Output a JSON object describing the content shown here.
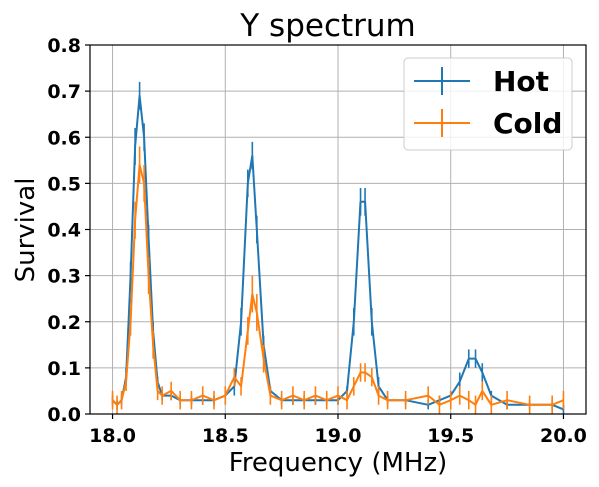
{
  "chart_data": {
    "type": "line",
    "title": "Y spectrum",
    "xlabel": "Frequency (MHz)",
    "ylabel": "Survival",
    "xlim": [
      17.9,
      20.1
    ],
    "ylim": [
      0.0,
      0.8
    ],
    "xticks": [
      18.0,
      18.5,
      19.0,
      19.5,
      20.0
    ],
    "xtick_labels": [
      "18.0",
      "18.5",
      "19.0",
      "19.5",
      "20.0"
    ],
    "yticks": [
      0.0,
      0.1,
      0.2,
      0.3,
      0.4,
      0.5,
      0.6,
      0.7,
      0.8
    ],
    "ytick_labels": [
      "0.0",
      "0.1",
      "0.2",
      "0.3",
      "0.4",
      "0.5",
      "0.6",
      "0.7",
      "0.8"
    ],
    "grid": true,
    "legend_position": "top-right",
    "series": [
      {
        "name": "Hot",
        "color": "#1f77b4",
        "points": [
          [
            18.0,
            0.03,
            0.01
          ],
          [
            18.02,
            0.02,
            0.01
          ],
          [
            18.04,
            0.03,
            0.01
          ],
          [
            18.06,
            0.08,
            0.02
          ],
          [
            18.08,
            0.3,
            0.03
          ],
          [
            18.1,
            0.58,
            0.04
          ],
          [
            18.12,
            0.69,
            0.03
          ],
          [
            18.14,
            0.6,
            0.03
          ],
          [
            18.16,
            0.38,
            0.03
          ],
          [
            18.18,
            0.18,
            0.02
          ],
          [
            18.2,
            0.07,
            0.01
          ],
          [
            18.22,
            0.04,
            0.01
          ],
          [
            18.26,
            0.04,
            0.01
          ],
          [
            18.3,
            0.03,
            0.01
          ],
          [
            18.35,
            0.03,
            0.01
          ],
          [
            18.4,
            0.03,
            0.01
          ],
          [
            18.45,
            0.03,
            0.01
          ],
          [
            18.5,
            0.04,
            0.01
          ],
          [
            18.54,
            0.06,
            0.02
          ],
          [
            18.57,
            0.2,
            0.03
          ],
          [
            18.6,
            0.5,
            0.03
          ],
          [
            18.62,
            0.56,
            0.03
          ],
          [
            18.64,
            0.4,
            0.03
          ],
          [
            18.67,
            0.15,
            0.02
          ],
          [
            18.7,
            0.05,
            0.01
          ],
          [
            18.75,
            0.03,
            0.01
          ],
          [
            18.8,
            0.03,
            0.01
          ],
          [
            18.85,
            0.03,
            0.01
          ],
          [
            18.9,
            0.03,
            0.01
          ],
          [
            18.95,
            0.03,
            0.01
          ],
          [
            19.0,
            0.03,
            0.01
          ],
          [
            19.04,
            0.05,
            0.01
          ],
          [
            19.07,
            0.2,
            0.03
          ],
          [
            19.1,
            0.46,
            0.03
          ],
          [
            19.12,
            0.46,
            0.03
          ],
          [
            19.15,
            0.2,
            0.03
          ],
          [
            19.18,
            0.06,
            0.02
          ],
          [
            19.22,
            0.03,
            0.01
          ],
          [
            19.3,
            0.03,
            0.01
          ],
          [
            19.4,
            0.02,
            0.01
          ],
          [
            19.45,
            0.03,
            0.01
          ],
          [
            19.5,
            0.04,
            0.01
          ],
          [
            19.54,
            0.07,
            0.02
          ],
          [
            19.58,
            0.12,
            0.02
          ],
          [
            19.61,
            0.12,
            0.02
          ],
          [
            19.64,
            0.09,
            0.02
          ],
          [
            19.68,
            0.04,
            0.01
          ],
          [
            19.75,
            0.02,
            0.01
          ],
          [
            19.85,
            0.02,
            0.01
          ],
          [
            19.95,
            0.02,
            0.01
          ],
          [
            20.0,
            0.01,
            0.01
          ]
        ]
      },
      {
        "name": "Cold",
        "color": "#ff7f0e",
        "points": [
          [
            18.0,
            0.03,
            0.02
          ],
          [
            18.02,
            0.02,
            0.02
          ],
          [
            18.04,
            0.03,
            0.02
          ],
          [
            18.06,
            0.07,
            0.02
          ],
          [
            18.08,
            0.2,
            0.03
          ],
          [
            18.1,
            0.42,
            0.04
          ],
          [
            18.12,
            0.54,
            0.04
          ],
          [
            18.14,
            0.5,
            0.04
          ],
          [
            18.16,
            0.3,
            0.04
          ],
          [
            18.18,
            0.15,
            0.03
          ],
          [
            18.2,
            0.05,
            0.02
          ],
          [
            18.22,
            0.04,
            0.02
          ],
          [
            18.26,
            0.05,
            0.02
          ],
          [
            18.3,
            0.03,
            0.02
          ],
          [
            18.35,
            0.03,
            0.02
          ],
          [
            18.4,
            0.04,
            0.02
          ],
          [
            18.45,
            0.03,
            0.02
          ],
          [
            18.5,
            0.04,
            0.02
          ],
          [
            18.54,
            0.08,
            0.02
          ],
          [
            18.57,
            0.06,
            0.02
          ],
          [
            18.6,
            0.18,
            0.03
          ],
          [
            18.62,
            0.26,
            0.04
          ],
          [
            18.64,
            0.22,
            0.04
          ],
          [
            18.67,
            0.12,
            0.03
          ],
          [
            18.7,
            0.04,
            0.02
          ],
          [
            18.75,
            0.03,
            0.02
          ],
          [
            18.8,
            0.04,
            0.02
          ],
          [
            18.85,
            0.03,
            0.02
          ],
          [
            18.9,
            0.04,
            0.02
          ],
          [
            18.95,
            0.03,
            0.02
          ],
          [
            19.0,
            0.04,
            0.02
          ],
          [
            19.04,
            0.03,
            0.02
          ],
          [
            19.07,
            0.06,
            0.02
          ],
          [
            19.1,
            0.09,
            0.02
          ],
          [
            19.12,
            0.09,
            0.02
          ],
          [
            19.15,
            0.08,
            0.02
          ],
          [
            19.18,
            0.04,
            0.02
          ],
          [
            19.22,
            0.03,
            0.02
          ],
          [
            19.3,
            0.03,
            0.02
          ],
          [
            19.4,
            0.04,
            0.02
          ],
          [
            19.45,
            0.02,
            0.02
          ],
          [
            19.5,
            0.03,
            0.02
          ],
          [
            19.54,
            0.04,
            0.02
          ],
          [
            19.58,
            0.03,
            0.02
          ],
          [
            19.61,
            0.02,
            0.02
          ],
          [
            19.64,
            0.05,
            0.02
          ],
          [
            19.68,
            0.02,
            0.02
          ],
          [
            19.75,
            0.03,
            0.02
          ],
          [
            19.85,
            0.02,
            0.02
          ],
          [
            19.95,
            0.02,
            0.02
          ],
          [
            20.0,
            0.03,
            0.02
          ]
        ]
      }
    ]
  }
}
